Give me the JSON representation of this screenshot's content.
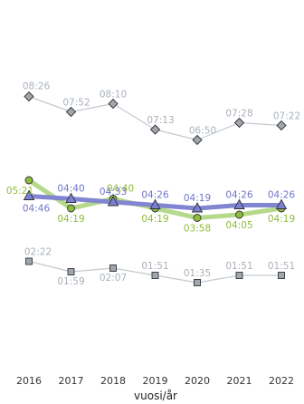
{
  "chart_data": {
    "type": "line",
    "title": "",
    "xlabel": "vuosi/år",
    "ylabel": "",
    "categories": [
      "2016",
      "2017",
      "2018",
      "2019",
      "2020",
      "2021",
      "2022"
    ],
    "y_unit": "minutes",
    "grid": false,
    "legend": "none",
    "series": [
      {
        "marker": "diamond",
        "line_color": "#c4c9cf",
        "marker_fill": "#9fa6ad",
        "label_color": "#a9b1bb",
        "values": [
          506,
          472,
          490,
          433,
          410,
          448,
          442
        ],
        "labels": [
          "08:26",
          "07:52",
          "08:10",
          "07:13",
          "06:50",
          "07:28",
          "07:22"
        ]
      },
      {
        "marker": "circle",
        "line_color": "#b5d98a",
        "marker_fill": "#8dbd3c",
        "label_color": "#8fbd3a",
        "values": [
          321,
          259,
          280,
          259,
          238,
          245,
          259
        ],
        "labels": [
          "05:21",
          "04:19",
          "04:40",
          "04:19",
          "03:58",
          "04:05",
          "04:19"
        ]
      },
      {
        "marker": "triangle",
        "line_color": "#8286d0",
        "marker_fill": "#7a7fd3",
        "label_color": "#6f74c9",
        "values": [
          286,
          280,
          273,
          266,
          259,
          266,
          266
        ],
        "labels": [
          "04:46",
          "04:40",
          "04:33",
          "04:26",
          "04:19",
          "04:26",
          "04:26"
        ]
      },
      {
        "marker": "square",
        "line_color": "#c4c9cf",
        "marker_fill": "#9fa6ad",
        "label_color": "#a9b1bb",
        "values": [
          142,
          119,
          127,
          111,
          95,
          111,
          111
        ],
        "labels": [
          "02:22",
          "01:59",
          "02:07",
          "01:51",
          "01:35",
          "01:51",
          "01:51"
        ]
      }
    ]
  }
}
